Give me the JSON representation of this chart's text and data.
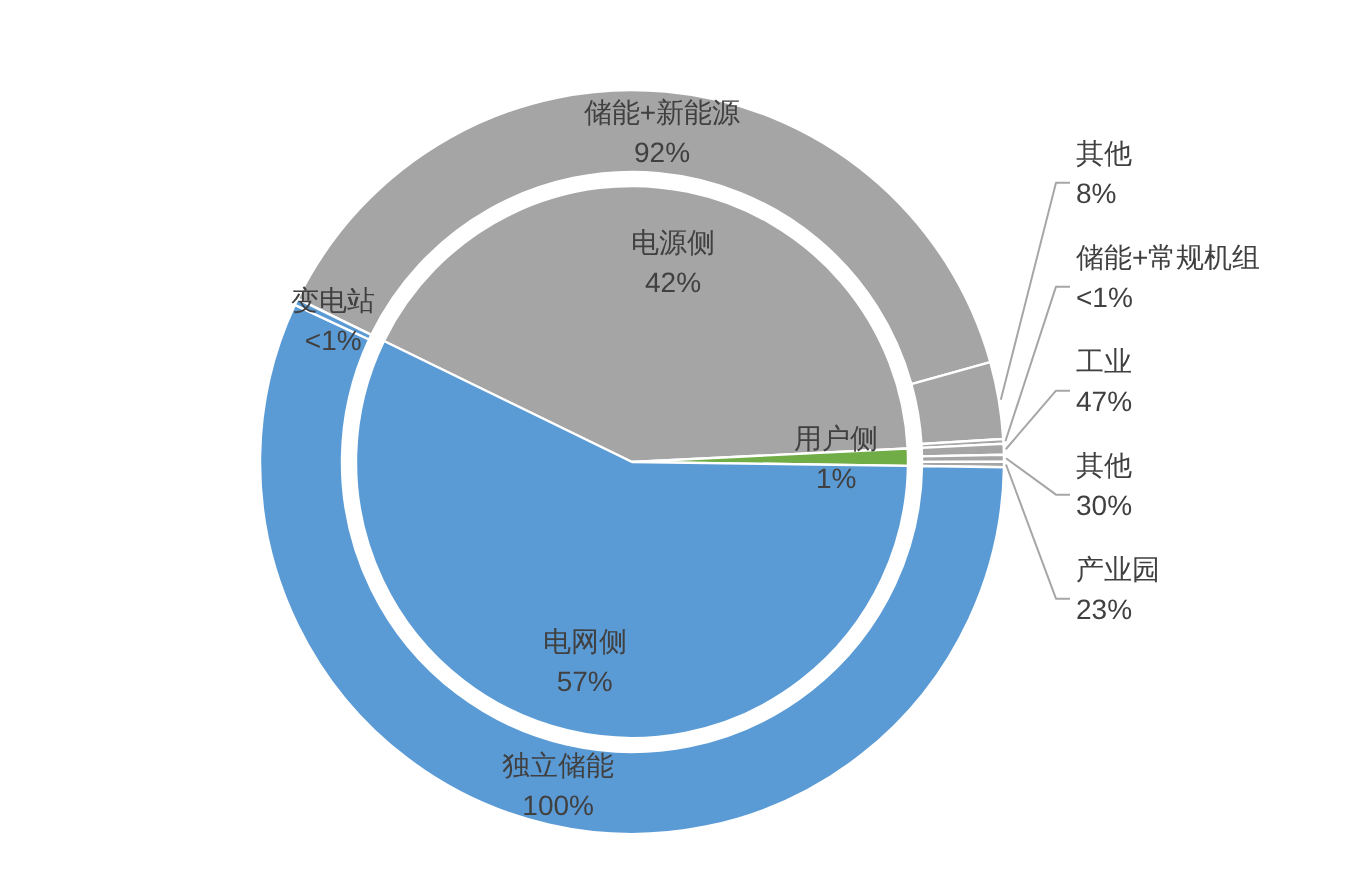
{
  "chart_data": [
    {
      "type": "pie",
      "categories": [
        "电源侧",
        "用户侧",
        "电网侧"
      ],
      "values": [
        42,
        1,
        57
      ],
      "colors": [
        "#a5a5a5",
        "#70ad47",
        "#5b9bd5"
      ],
      "value_labels": [
        "42%",
        "1%",
        "57%"
      ]
    },
    {
      "type": "other",
      "categories": [
        "储能+新能源",
        "其他",
        "储能+常规机组",
        "工业",
        "其他",
        "产业园",
        "独立储能",
        "变电站"
      ],
      "values": [
        92,
        8,
        0.5,
        47,
        30,
        23,
        100,
        0.5
      ],
      "colors": [
        "#a5a5a5",
        "#a5a5a5",
        "#a5a5a5",
        "#a5a5a5",
        "#a5a5a5",
        "#a5a5a5",
        "#5b9bd5",
        "#5b9bd5"
      ],
      "value_labels": [
        "92%",
        "8%",
        "<1%",
        "47%",
        "30%",
        "23%",
        "100%",
        "<1%"
      ]
    }
  ]
}
